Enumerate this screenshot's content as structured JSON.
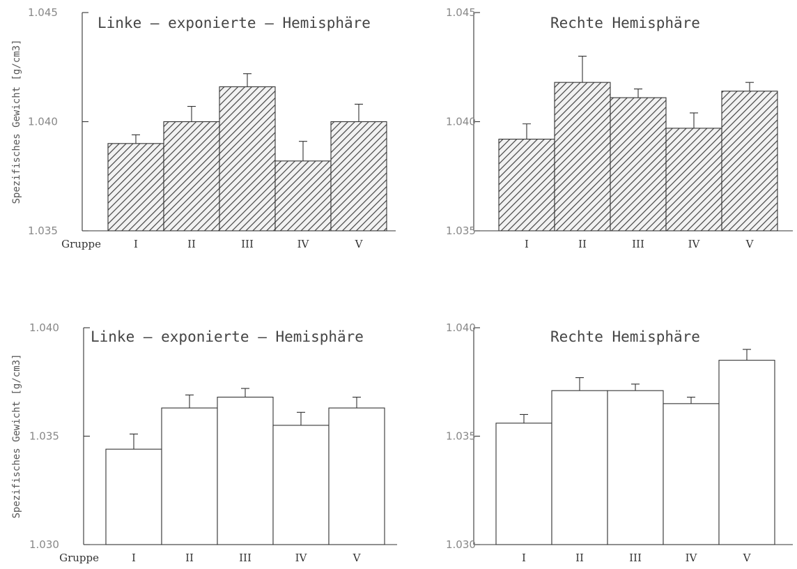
{
  "chart_data": [
    {
      "type": "bar",
      "title": "Linke – exponierte – Hemisphäre",
      "ylabel": "Spezifisches Gewicht  [g/cm3]",
      "group_label": "Gruppe",
      "categories": [
        "I",
        "II",
        "III",
        "IV",
        "V"
      ],
      "values": [
        1.039,
        1.04,
        1.0416,
        1.0382,
        1.04
      ],
      "errors": [
        0.0004,
        0.0007,
        0.0006,
        0.0009,
        0.0008
      ],
      "ylim": [
        1.035,
        1.045
      ],
      "yticks": [
        "1.035",
        "1.040",
        "1.045"
      ],
      "pattern": "hatched",
      "grid": false
    },
    {
      "type": "bar",
      "title": "Rechte Hemisphäre",
      "categories": [
        "I",
        "II",
        "III",
        "IV",
        "V"
      ],
      "values": [
        1.0392,
        1.0418,
        1.0411,
        1.0397,
        1.0414
      ],
      "errors": [
        0.0007,
        0.0012,
        0.0004,
        0.0007,
        0.0004
      ],
      "ylim": [
        1.035,
        1.045
      ],
      "yticks": [
        "1.035",
        "1.040",
        "1.045"
      ],
      "pattern": "hatched",
      "grid": false
    },
    {
      "type": "bar",
      "title": "Linke – exponierte – Hemisphäre",
      "ylabel": "Spezifisches Gewicht [g/cm3]",
      "group_label": "Gruppe",
      "categories": [
        "I",
        "II",
        "III",
        "IV",
        "V"
      ],
      "values": [
        1.0344,
        1.0363,
        1.0368,
        1.0355,
        1.0363
      ],
      "errors": [
        0.0007,
        0.0006,
        0.0004,
        0.0006,
        0.0005
      ],
      "ylim": [
        1.03,
        1.04
      ],
      "yticks": [
        "1.030",
        "1.035",
        "1.040"
      ],
      "pattern": "open",
      "grid": false
    },
    {
      "type": "bar",
      "title": "Rechte Hemisphäre",
      "categories": [
        "I",
        "II",
        "III",
        "IV",
        "V"
      ],
      "values": [
        1.0356,
        1.0371,
        1.0371,
        1.0365,
        1.0385
      ],
      "errors": [
        0.0004,
        0.0006,
        0.0003,
        0.0003,
        0.0005
      ],
      "ylim": [
        1.03,
        1.04
      ],
      "yticks": [
        "1.030",
        "1.035",
        "1.040"
      ],
      "pattern": "open",
      "grid": false
    }
  ]
}
